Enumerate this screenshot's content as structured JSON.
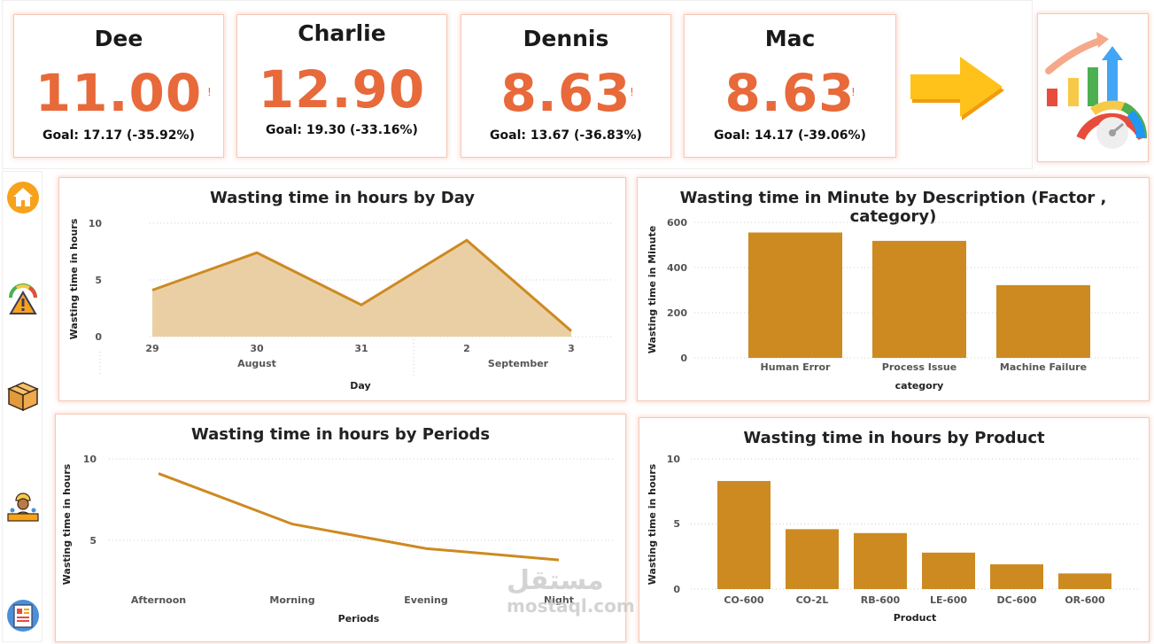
{
  "kpis": [
    {
      "name": "Dee",
      "value": "11.00",
      "goal": "Goal: 17.17 (-35.92%)"
    },
    {
      "name": "Charlie",
      "value": "12.90",
      "goal": "Goal: 19.30 (-33.16%)"
    },
    {
      "name": "Dennis",
      "value": "8.63",
      "goal": "Goal: 13.67 (-36.83%)"
    },
    {
      "name": "Mac",
      "value": "8.63",
      "goal": "Goal: 14.17 (-39.06%)"
    }
  ],
  "kpi_alert": "!",
  "nav": [
    {
      "icon": "home-icon"
    },
    {
      "icon": "warning-gauge-icon"
    },
    {
      "icon": "box-icon"
    },
    {
      "icon": "worker-icon"
    },
    {
      "icon": "report-icon"
    }
  ],
  "colors": {
    "accent": "#e8693a",
    "bar": "#cd8a21",
    "area_fill": "#ebcfa4",
    "area_line": "#cd8a21",
    "border": "#f6c8b8"
  },
  "watermark": "مستقل\nmostaql.com",
  "watermark_ar": "مستقل",
  "watermark_en": "mostaql.com",
  "chart_data": [
    {
      "type": "area",
      "title": "Wasting time in hours by Day",
      "xlabel": "Day",
      "ylabel": "Wasting time in hours",
      "categories": [
        "29",
        "30",
        "31",
        "2",
        "3"
      ],
      "groups": [
        "August",
        "September"
      ],
      "values": [
        4.1,
        7.4,
        2.8,
        8.5,
        0.5
      ],
      "yticks": [
        "0",
        "5",
        "10"
      ],
      "ylim": [
        0,
        10
      ]
    },
    {
      "type": "bar",
      "title": "Wasting time in Minute by Description (Factor , category)",
      "xlabel": "category",
      "ylabel": "Wasting time in Minute",
      "categories": [
        "Human Error",
        "Process Issue",
        "Machine Failure"
      ],
      "values": [
        555,
        518,
        322
      ],
      "yticks": [
        "0",
        "200",
        "400",
        "600"
      ],
      "ylim": [
        0,
        600
      ]
    },
    {
      "type": "line",
      "title": "Wasting time in hours by Periods",
      "xlabel": "Periods",
      "ylabel": "Wasting time in hours",
      "categories": [
        "Afternoon",
        "Morning",
        "Evening",
        "Night"
      ],
      "values": [
        9.1,
        6.0,
        4.5,
        3.8
      ],
      "yticks": [
        "5",
        "10"
      ],
      "ylim": [
        2.3,
        10
      ]
    },
    {
      "type": "bar",
      "title": "Wasting time in hours by Product",
      "xlabel": "Product",
      "ylabel": "Wasting time in hours",
      "categories": [
        "CO-600",
        "CO-2L",
        "RB-600",
        "LE-600",
        "DC-600",
        "OR-600"
      ],
      "values": [
        8.3,
        4.6,
        4.3,
        2.8,
        1.9,
        1.2
      ],
      "yticks": [
        "0",
        "5",
        "10"
      ],
      "ylim": [
        0,
        10
      ]
    }
  ]
}
